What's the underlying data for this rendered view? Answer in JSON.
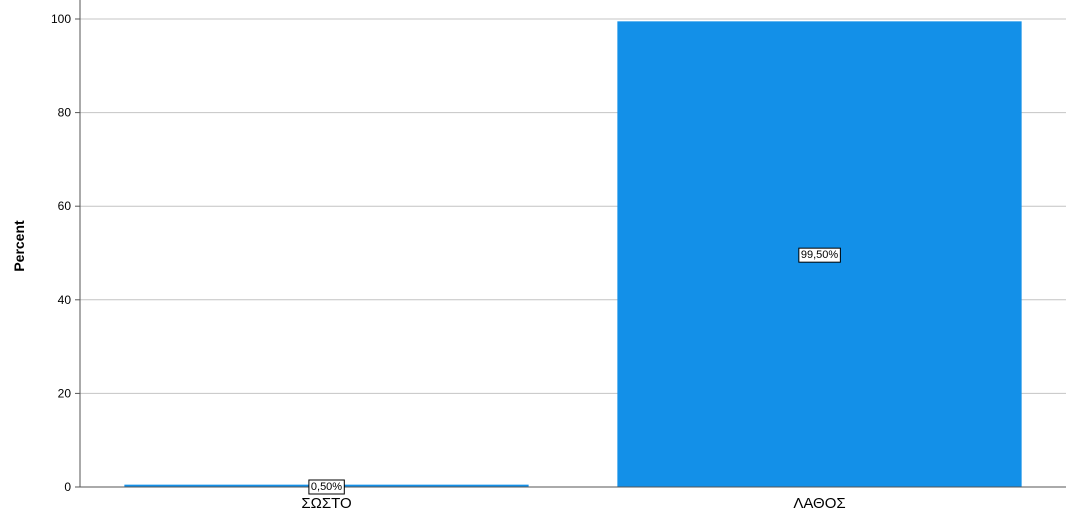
{
  "chart_data": {
    "type": "bar",
    "categories": [
      "ΣΩΣΤΟ",
      "ΛΑΘΟΣ"
    ],
    "values": [
      0.5,
      99.5
    ],
    "data_labels": [
      "0,50%",
      "99,50%"
    ],
    "title": "",
    "xlabel": "",
    "ylabel": "Percent",
    "ylim": [
      0,
      100
    ],
    "yticks": [
      0,
      20,
      40,
      60,
      80,
      100
    ],
    "grid": true,
    "colors": {
      "bar": "#1390E8",
      "grid": "#c4c4c4",
      "axis": "#555555",
      "label_bg": "#ffffff",
      "label_border": "#000000"
    }
  }
}
